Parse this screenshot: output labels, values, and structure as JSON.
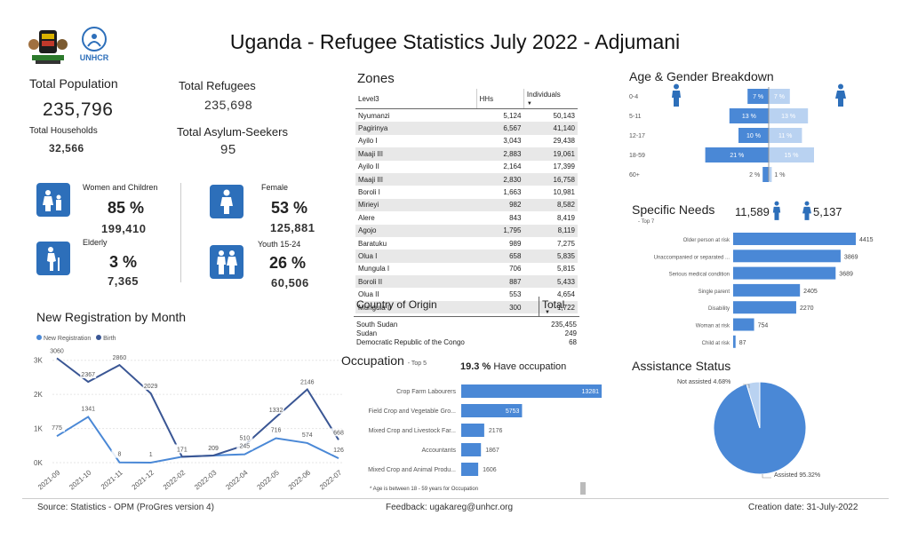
{
  "title": "Uganda - Refugee Statistics July 2022 - Adjumani",
  "logos": {
    "unhcr_text": "UNHCR"
  },
  "kpis": {
    "total_population_label": "Total Population",
    "total_population": "235,796",
    "total_households_label": "Total Households",
    "total_households": "32,566",
    "total_refugees_label": "Total Refugees",
    "total_refugees": "235,698",
    "asylum_label": "Total Asylum-Seekers",
    "asylum": "95"
  },
  "demographics": {
    "women_children_label": "Women and Children",
    "women_children_pct": "85 %",
    "women_children_count": "199,410",
    "elderly_label": "Elderly",
    "elderly_pct": "3 %",
    "elderly_count": "7,365",
    "female_label": "Female",
    "female_pct": "53 %",
    "female_count": "125,881",
    "youth_label": "Youth 15-24",
    "youth_pct": "26 %",
    "youth_count": "60,506"
  },
  "zones": {
    "title": "Zones",
    "headers": [
      "Level3",
      "HHs",
      "Individuals"
    ],
    "rows": [
      [
        "Nyumanzi",
        "5,124",
        "50,143"
      ],
      [
        "Pagirinya",
        "6,567",
        "41,140"
      ],
      [
        "Ayilo I",
        "3,043",
        "29,438"
      ],
      [
        "Maaji III",
        "2,883",
        "19,061"
      ],
      [
        "Ayilo II",
        "2,164",
        "17,399"
      ],
      [
        "Maaji III",
        "2,830",
        "16,758"
      ],
      [
        "Boroli I",
        "1,663",
        "10,981"
      ],
      [
        "Mirieyi",
        "982",
        "8,582"
      ],
      [
        "Alere",
        "843",
        "8,419"
      ],
      [
        "Agojo",
        "1,795",
        "8,119"
      ],
      [
        "Baratuku",
        "989",
        "7,275"
      ],
      [
        "Olua I",
        "658",
        "5,835"
      ],
      [
        "Mungula I",
        "706",
        "5,815"
      ],
      [
        "Boroli II",
        "887",
        "5,433"
      ],
      [
        "Olua II",
        "553",
        "4,654"
      ],
      [
        "Mungula II",
        "300",
        "1,722"
      ]
    ]
  },
  "origin": {
    "title": "Country of Origin",
    "total_label": "Total",
    "rows": [
      [
        "South Sudan",
        "235,455"
      ],
      [
        "Sudan",
        "249"
      ],
      [
        "Democratic Republic of the Congo",
        "68"
      ]
    ]
  },
  "registration": {
    "title": "New Registration by Month",
    "legend": [
      "New Registration",
      "Birth"
    ]
  },
  "occupation": {
    "title": "Occupation",
    "subtitle": "- Top 5",
    "have_pct": "19.3 %",
    "have_text": "Have occupation",
    "note": "* Age is between 18 - 59 years for Occupation"
  },
  "age_gender": {
    "title": "Age & Gender Breakdown"
  },
  "specific_needs": {
    "title": "Specific Needs",
    "subtitle": "- Top 7",
    "male_count": "11,589",
    "female_count": "5,137"
  },
  "assistance": {
    "title": "Assistance Status",
    "not_assisted": "Not assisted 4.68%",
    "assisted": "Assisted 95.32%"
  },
  "footer": {
    "source": "Source: Statistics - OPM (ProGres version 4)",
    "feedback": "Feedback: ugakareg@unhcr.org",
    "created": "Creation date: 31-July-2022"
  },
  "colors": {
    "primary": "#4a88d6",
    "dark": "#3a5694",
    "light": "#b9d2f1",
    "icon_bg": "#2d6fba"
  },
  "chart_data": [
    {
      "type": "line",
      "title": "New Registration by Month",
      "categories": [
        "2021-09",
        "2021-10",
        "2021-11",
        "2021-12",
        "2022-02",
        "2022-03",
        "2022-04",
        "2022-05",
        "2022-06",
        "2022-07"
      ],
      "series": [
        {
          "name": "New Registration",
          "values": [
            775,
            1341,
            8,
            1,
            171,
            209,
            245,
            716,
            574,
            126
          ]
        },
        {
          "name": "Birth",
          "values": [
            3060,
            2367,
            2860,
            2029,
            171,
            209,
            510,
            1332,
            2146,
            668
          ]
        }
      ],
      "ylim": [
        0,
        3200
      ],
      "yticks": [
        "0K",
        "1K",
        "2K",
        "3K"
      ]
    },
    {
      "type": "bar",
      "title": "Occupation",
      "categories": [
        "Crop Farm Labourers",
        "Field Crop and Vegetable Gro...",
        "Mixed Crop and Livestock Far...",
        "Accountants",
        "Mixed Crop and Animal Produ..."
      ],
      "values": [
        13281,
        5753,
        2176,
        1867,
        1606
      ]
    },
    {
      "type": "bar",
      "title": "Age & Gender Breakdown",
      "categories": [
        "0-4",
        "5-11",
        "12-17",
        "18-59",
        "60+"
      ],
      "series": [
        {
          "name": "male",
          "values": [
            7,
            13,
            10,
            21,
            2
          ],
          "labels": [
            "7 %",
            "13 %",
            "10 %",
            "21 %",
            "2 %"
          ]
        },
        {
          "name": "female",
          "values": [
            7,
            13,
            11,
            15,
            1
          ],
          "labels": [
            "7 %",
            "13 %",
            "11 %",
            "15 %",
            "1 %"
          ]
        }
      ]
    },
    {
      "type": "bar",
      "title": "Specific Needs",
      "categories": [
        "Older person at risk",
        "Unaccompanied or separated ...",
        "Serious medical condition",
        "Single parent",
        "Disability",
        "Woman at risk",
        "Child at risk"
      ],
      "values": [
        4415,
        3869,
        3689,
        2405,
        2270,
        754,
        87
      ]
    },
    {
      "type": "pie",
      "title": "Assistance Status",
      "categories": [
        "Assisted",
        "Not assisted"
      ],
      "values": [
        95.32,
        4.68
      ]
    }
  ]
}
